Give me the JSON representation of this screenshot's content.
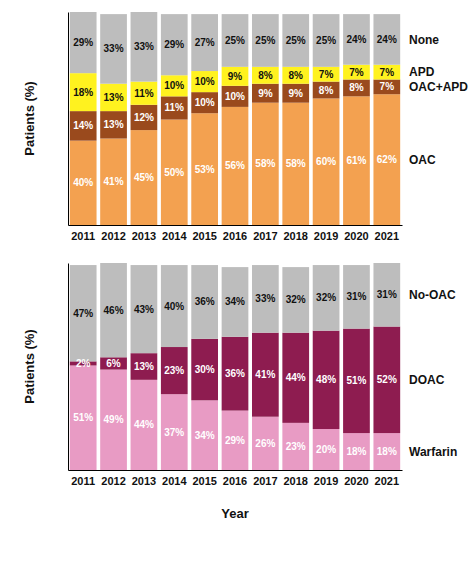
{
  "chart_data": [
    {
      "type": "bar",
      "stacked": true,
      "data_labels": true,
      "tick_labels": "x",
      "legend": "right",
      "y_label": "Patients (%)",
      "categories": [
        "2011",
        "2012",
        "2013",
        "2014",
        "2015",
        "2016",
        "2017",
        "2018",
        "2019",
        "2020",
        "2021"
      ],
      "ylim": [
        0,
        101
      ],
      "series": [
        {
          "name": "OAC",
          "color": "#f3a150",
          "values": [
            40,
            41,
            45,
            50,
            53,
            56,
            58,
            58,
            60,
            61,
            62
          ],
          "value_labels": [
            "40%",
            "41%",
            "45%",
            "50%",
            "53%",
            "56%",
            "58%",
            "58%",
            "60%",
            "61%",
            "62%"
          ]
        },
        {
          "name": "OAC+APD",
          "color": "#9a4a1d",
          "values": [
            14,
            13,
            12,
            11,
            10,
            10,
            9,
            9,
            8,
            8,
            7
          ],
          "value_labels": [
            "14%",
            "13%",
            "12%",
            "11%",
            "10%",
            "10%",
            "9%",
            "9%",
            "8%",
            "8%",
            "7%"
          ]
        },
        {
          "name": "APD",
          "color": "#fff21f",
          "values": [
            18,
            13,
            11,
            10,
            10,
            9,
            8,
            8,
            7,
            7,
            7
          ],
          "value_labels": [
            "18%",
            "13%",
            "11%",
            "10%",
            "10%",
            "9%",
            "8%",
            "8%",
            "7%",
            "7%",
            "7%"
          ]
        },
        {
          "name": "None",
          "color": "#bdbdbd",
          "values": [
            29,
            33,
            33,
            29,
            27,
            25,
            25,
            25,
            25,
            24,
            24
          ],
          "value_labels": [
            "29%",
            "33%",
            "33%",
            "29%",
            "27%",
            "25%",
            "25%",
            "25%",
            "25%",
            "24%",
            "24%"
          ]
        }
      ]
    },
    {
      "type": "bar",
      "stacked": true,
      "data_labels": true,
      "tick_labels": "x",
      "legend": "right",
      "y_label": "Patients (%)",
      "x_label": "Year",
      "categories": [
        "2011",
        "2012",
        "2013",
        "2014",
        "2015",
        "2016",
        "2017",
        "2018",
        "2019",
        "2020",
        "2021"
      ],
      "ylim": [
        0,
        101
      ],
      "series": [
        {
          "name": "Warfarin",
          "color": "#e89bc4",
          "values": [
            51,
            49,
            44,
            37,
            34,
            29,
            26,
            23,
            20,
            18,
            18
          ],
          "value_labels": [
            "51%",
            "49%",
            "44%",
            "37%",
            "34%",
            "29%",
            "26%",
            "23%",
            "20%",
            "18%",
            "18%"
          ]
        },
        {
          "name": "DOAC",
          "color": "#8e1c50",
          "values": [
            2,
            6,
            13,
            23,
            30,
            36,
            41,
            44,
            48,
            51,
            52
          ],
          "value_labels": [
            "2%",
            "6%",
            "13%",
            "23%",
            "30%",
            "36%",
            "41%",
            "44%",
            "48%",
            "51%",
            "52%"
          ]
        },
        {
          "name": "No-OAC",
          "color": "#bdbdbd",
          "values": [
            47,
            46,
            43,
            40,
            36,
            34,
            33,
            32,
            32,
            31,
            31
          ],
          "value_labels": [
            "47%",
            "46%",
            "43%",
            "40%",
            "36%",
            "34%",
            "33%",
            "32%",
            "32%",
            "31%",
            "31%"
          ]
        }
      ]
    }
  ]
}
